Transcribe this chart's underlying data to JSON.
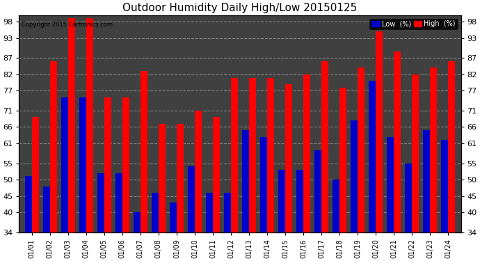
{
  "title": "Outdoor Humidity Daily High/Low 20150125",
  "copyright": "Copyright 2015 Cartronics.com",
  "labels": [
    "01/01",
    "01/02",
    "01/03",
    "01/04",
    "01/05",
    "01/06",
    "01/07",
    "01/08",
    "01/09",
    "01/10",
    "01/11",
    "01/12",
    "01/13",
    "01/14",
    "01/15",
    "01/16",
    "01/17",
    "01/18",
    "01/19",
    "01/20",
    "01/21",
    "01/22",
    "01/23",
    "01/24"
  ],
  "high": [
    69,
    86,
    99,
    99,
    75,
    75,
    83,
    67,
    67,
    71,
    69,
    81,
    81,
    81,
    79,
    82,
    86,
    78,
    84,
    95,
    89,
    82,
    84,
    86
  ],
  "low": [
    51,
    48,
    75,
    75,
    52,
    52,
    40,
    46,
    43,
    54,
    46,
    46,
    65,
    63,
    53,
    53,
    59,
    50,
    68,
    80,
    63,
    55,
    65,
    62
  ],
  "ylim": [
    34,
    100
  ],
  "yticks": [
    34,
    40,
    45,
    50,
    55,
    61,
    66,
    71,
    77,
    82,
    87,
    93,
    98
  ],
  "bg_color": "#ffffff",
  "plot_bg": "#404040",
  "high_color": "#ff0000",
  "low_color": "#0000cc",
  "grid_color": "#888888",
  "title_fontsize": 11,
  "legend_low_label": "Low  (%)",
  "legend_high_label": "High  (%)"
}
